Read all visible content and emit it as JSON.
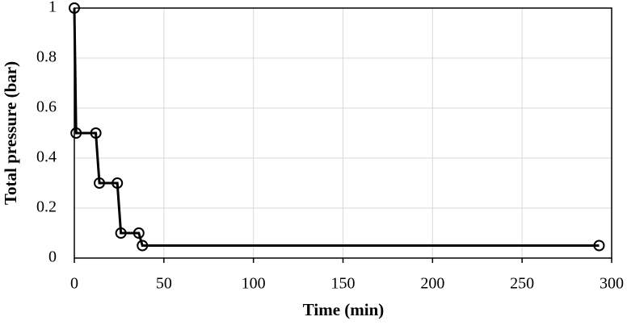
{
  "chart_data": {
    "type": "line",
    "x_label": "Time (min)",
    "y_label": "Total pressure (bar)",
    "series": [
      {
        "name": "Total pressure",
        "color": "#000000",
        "x": [
          0,
          1,
          12,
          14,
          24,
          26,
          36,
          38,
          293
        ],
        "values": [
          1,
          0.5,
          0.5,
          0.3,
          0.3,
          0.1,
          0.1,
          0.05,
          0.05
        ]
      }
    ],
    "xlim": [
      0,
      300
    ],
    "xticks": [
      0,
      50,
      100,
      150,
      200,
      250,
      300
    ],
    "ylim": [
      0,
      1
    ],
    "yticks": [
      0,
      0.2,
      0.4,
      0.6,
      0.8,
      1
    ],
    "grid": true
  }
}
